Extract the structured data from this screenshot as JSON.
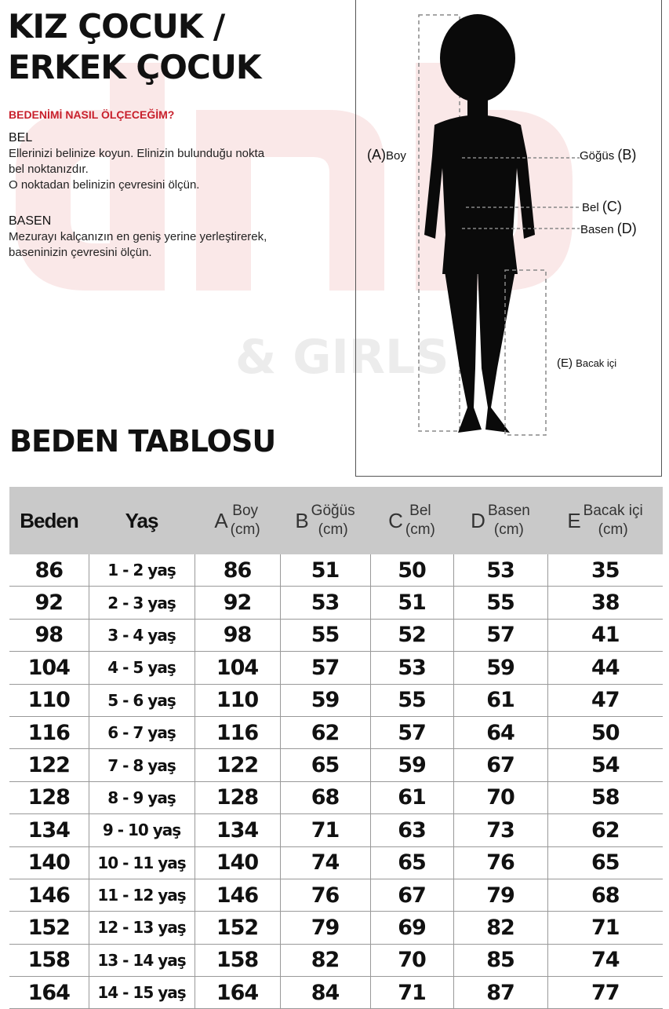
{
  "title_lines": [
    "KIZ ÇOCUK /",
    "ERKEK ÇOCUK"
  ],
  "howto": "BEDENİMİ NASIL ÖLÇECEĞİM?",
  "sections": [
    {
      "heading": "BEL",
      "lines": [
        "Ellerinizi belinize koyun. Elinizin bulunduğu nokta",
        "bel noktanızdır.",
        "O noktadan belinizin çevresini ölçün."
      ]
    },
    {
      "heading": "BASEN",
      "lines": [
        "Mezurayı kalçanızın en geniş yerine yerleştirerek,",
        "baseninizin çevresini ölçün."
      ]
    }
  ],
  "figure": {
    "labels": {
      "a": "(A)",
      "a_text": "Boy",
      "b_text": "Göğüs",
      "b": "(B)",
      "c_text": "Bel",
      "c": "(C)",
      "d_text": "Basen",
      "d": "(D)",
      "e": "(E)",
      "e_text": "Bacak içi"
    },
    "watermark": "& GIRLS"
  },
  "table_title": "BEDEN TABLOSU",
  "table": {
    "headers": [
      {
        "letter": "",
        "label": "Beden",
        "unit": ""
      },
      {
        "letter": "",
        "label": "Yaş",
        "unit": ""
      },
      {
        "letter": "A",
        "label": "Boy",
        "unit": "(cm)"
      },
      {
        "letter": "B",
        "label": "Göğüs",
        "unit": "(cm)"
      },
      {
        "letter": "C",
        "label": "Bel",
        "unit": "(cm)"
      },
      {
        "letter": "D",
        "label": "Basen",
        "unit": "(cm)"
      },
      {
        "letter": "E",
        "label": "Bacak içi",
        "unit": "(cm)"
      }
    ],
    "rows": [
      [
        "86",
        "1 - 2 yaş",
        "86",
        "51",
        "50",
        "53",
        "35"
      ],
      [
        "92",
        "2 - 3 yaş",
        "92",
        "53",
        "51",
        "55",
        "38"
      ],
      [
        "98",
        "3 - 4 yaş",
        "98",
        "55",
        "52",
        "57",
        "41"
      ],
      [
        "104",
        "4 - 5 yaş",
        "104",
        "57",
        "53",
        "59",
        "44"
      ],
      [
        "110",
        "5 - 6 yaş",
        "110",
        "59",
        "55",
        "61",
        "47"
      ],
      [
        "116",
        "6 - 7 yaş",
        "116",
        "62",
        "57",
        "64",
        "50"
      ],
      [
        "122",
        "7 - 8 yaş",
        "122",
        "65",
        "59",
        "67",
        "54"
      ],
      [
        "128",
        "8 - 9 yaş",
        "128",
        "68",
        "61",
        "70",
        "58"
      ],
      [
        "134",
        "9 - 10 yaş",
        "134",
        "71",
        "63",
        "73",
        "62"
      ],
      [
        "140",
        "10 - 11 yaş",
        "140",
        "74",
        "65",
        "76",
        "65"
      ],
      [
        "146",
        "11 - 12 yaş",
        "146",
        "76",
        "67",
        "79",
        "68"
      ],
      [
        "152",
        "12 - 13 yaş",
        "152",
        "79",
        "69",
        "82",
        "71"
      ],
      [
        "158",
        "13 - 14 yaş",
        "158",
        "82",
        "70",
        "85",
        "74"
      ],
      [
        "164",
        "14 - 15 yaş",
        "164",
        "84",
        "71",
        "87",
        "77"
      ]
    ]
  },
  "colors": {
    "accent": "#c8202c",
    "header_bg": "#c9c9c9"
  }
}
